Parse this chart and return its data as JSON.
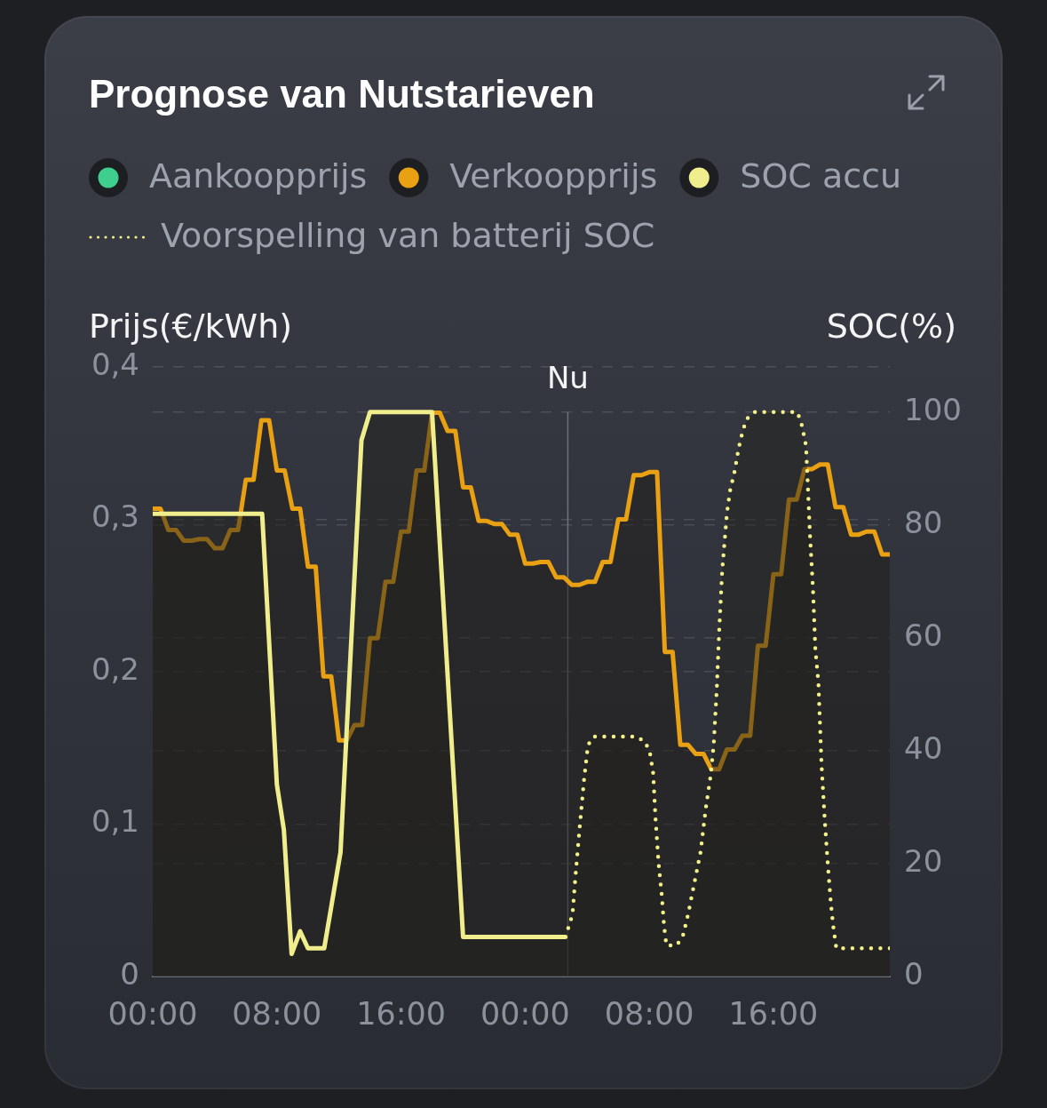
{
  "chart_data": {
    "type": "area",
    "title": "Prognose van Nutstarieven",
    "ylabel": "Prijs(€/kWh)",
    "y2label": "SOC(%)",
    "legend": "top",
    "grid": "y",
    "marker": "none",
    "xlim": [
      "--01-01T00:00",
      "--01-02T23:30"
    ],
    "xticks": [
      {
        "value": "--01-01T00:00",
        "label": "00:00"
      },
      {
        "value": "--01-01T08:00",
        "label": "08:00"
      },
      {
        "value": "--01-01T16:00",
        "label": "16:00"
      },
      {
        "value": "--01-02T00:00",
        "label": "00:00"
      },
      {
        "value": "--01-02T08:00",
        "label": "08:00"
      },
      {
        "value": "--01-02T16:00",
        "label": "16:00"
      }
    ],
    "ylim": [
      0,
      0.4
    ],
    "yticks": [
      0,
      {
        "value": 0.1,
        "label": "0,1"
      },
      {
        "value": 0.2,
        "label": "0,2"
      },
      {
        "value": 0.3,
        "label": "0,3"
      },
      {
        "value": 0.4,
        "label": "0,4"
      }
    ],
    "y2lim": [
      0,
      108
    ],
    "y2ticks": [
      0,
      20,
      40,
      60,
      80,
      100
    ],
    "x": [
      "--01-01T00:00",
      "--01-01T00:30",
      "--01-01T01:00",
      "--01-01T01:30",
      "--01-01T02:00",
      "--01-01T02:30",
      "--01-01T03:00",
      "--01-01T03:30",
      "--01-01T04:00",
      "--01-01T04:30",
      "--01-01T05:00",
      "--01-01T05:30",
      "--01-01T06:00",
      "--01-01T06:30",
      "--01-01T07:00",
      "--01-01T07:30",
      "--01-01T08:00",
      "--01-01T08:30",
      "--01-01T09:00",
      "--01-01T09:30",
      "--01-01T10:00",
      "--01-01T10:30",
      "--01-01T11:00",
      "--01-01T11:30",
      "--01-01T12:00",
      "--01-01T12:30",
      "--01-01T13:00",
      "--01-01T13:30",
      "--01-01T14:00",
      "--01-01T14:30",
      "--01-01T15:00",
      "--01-01T15:30",
      "--01-01T16:00",
      "--01-01T16:30",
      "--01-01T17:00",
      "--01-01T17:30",
      "--01-01T18:00",
      "--01-01T18:30",
      "--01-01T19:00",
      "--01-01T19:30",
      "--01-01T20:00",
      "--01-01T20:30",
      "--01-01T21:00",
      "--01-01T21:30",
      "--01-01T22:00",
      "--01-01T22:30",
      "--01-01T23:00",
      "--01-01T23:30",
      "--01-02T00:00",
      "--01-02T00:30",
      "--01-02T01:00",
      "--01-02T01:30",
      "--01-02T02:00",
      "--01-02T02:30",
      "--01-02T03:00",
      "--01-02T03:30",
      "--01-02T04:00",
      "--01-02T04:30",
      "--01-02T05:00",
      "--01-02T05:30",
      "--01-02T06:00",
      "--01-02T06:30",
      "--01-02T07:00",
      "--01-02T07:30",
      "--01-02T08:00",
      "--01-02T08:30",
      "--01-02T09:00",
      "--01-02T09:30",
      "--01-02T10:00",
      "--01-02T10:30",
      "--01-02T11:00",
      "--01-02T11:30",
      "--01-02T12:00",
      "--01-02T12:30",
      "--01-02T13:00",
      "--01-02T13:30",
      "--01-02T14:00",
      "--01-02T14:30",
      "--01-02T15:00",
      "--01-02T15:30",
      "--01-02T16:00",
      "--01-02T16:30",
      "--01-02T17:00",
      "--01-02T17:30",
      "--01-02T18:00",
      "--01-02T18:30",
      "--01-02T19:00",
      "--01-02T19:30",
      "--01-02T20:00",
      "--01-02T20:30",
      "--01-02T21:00",
      "--01-02T21:30",
      "--01-02T22:00",
      "--01-02T22:30",
      "--01-02T23:00",
      "--01-02T23:30"
    ],
    "series": [
      {
        "name": "Aankoopprijs",
        "color": "#3ecf8e",
        "values": [
          null,
          null,
          null,
          null,
          null,
          null,
          null,
          null,
          null,
          null,
          null,
          null,
          null,
          null,
          null,
          null,
          null,
          null,
          null,
          null,
          null,
          null,
          null,
          null,
          null,
          null,
          null,
          null,
          null,
          null,
          null,
          null,
          null,
          null,
          null,
          null,
          null,
          null,
          null,
          null,
          null,
          null,
          null,
          null,
          null,
          null,
          null,
          null,
          null,
          null,
          null,
          null,
          null,
          null,
          null,
          null,
          null,
          null,
          null,
          null,
          null,
          null,
          null,
          null,
          null,
          null,
          null,
          null,
          null,
          null,
          null,
          null,
          null,
          null,
          null,
          null,
          null,
          null,
          null,
          null,
          null,
          null,
          null,
          null,
          null,
          null,
          null,
          null,
          null,
          null,
          null,
          null,
          null,
          null,
          null,
          null
        ]
      },
      {
        "name": "Verkoopprijs",
        "color": "#e9a012",
        "values": [
          0.307,
          0.307,
          0.293,
          0.293,
          0.286,
          0.286,
          0.287,
          0.287,
          0.281,
          0.281,
          0.293,
          0.293,
          0.326,
          0.326,
          0.365,
          0.365,
          0.332,
          0.332,
          0.307,
          0.307,
          0.269,
          0.269,
          0.197,
          0.197,
          0.155,
          0.155,
          0.165,
          0.165,
          0.222,
          0.222,
          0.259,
          0.259,
          0.292,
          0.292,
          0.332,
          0.332,
          0.37,
          0.37,
          0.358,
          0.358,
          0.321,
          0.321,
          0.299,
          0.299,
          0.297,
          0.297,
          0.29,
          0.29,
          0.271,
          0.271,
          0.272,
          0.272,
          0.262,
          0.262,
          0.257,
          0.257,
          0.259,
          0.259,
          0.272,
          0.272,
          0.3,
          0.3,
          0.329,
          0.329,
          0.331,
          0.331,
          0.213,
          0.213,
          0.152,
          0.152,
          0.146,
          0.146,
          0.136,
          0.136,
          0.149,
          0.149,
          0.158,
          0.158,
          0.217,
          0.217,
          0.264,
          0.264,
          0.313,
          0.313,
          0.333,
          0.333,
          0.336,
          0.336,
          0.308,
          0.308,
          0.29,
          0.29,
          0.292,
          0.292,
          0.277,
          0.277
        ]
      },
      {
        "name": "SOC accu",
        "color": "#f0ee8c",
        "axis": "y2",
        "x": [
          "--01-01T00:00",
          "--01-01T07:03",
          "--01-01T08:00",
          "--01-01T08:27",
          "--01-01T08:57",
          "--01-01T09:30",
          "--01-01T10:00",
          "--01-01T11:03",
          "--01-01T12:06",
          "--01-01T13:27",
          "--01-01T14:00",
          "--01-01T18:00",
          "--01-01T20:00",
          "--01-02T02:36"
        ],
        "values": [
          82,
          82,
          34,
          26,
          4,
          8,
          5,
          5,
          22,
          95,
          100,
          100,
          7,
          7
        ]
      },
      {
        "name": "Voorspelling van batterij SOC",
        "color": "#f3f08a",
        "axis": "y2",
        "line_style": "dotted",
        "x": [
          "--01-02T02:36",
          "--01-02T03:03",
          "--01-02T03:15",
          "--01-02T03:30",
          "--01-02T03:48",
          "--01-02T04:03",
          "--01-02T04:24",
          "--01-02T07:12",
          "--01-02T07:45",
          "--01-02T08:03",
          "--01-02T08:15",
          "--01-02T08:24",
          "--01-02T08:36",
          "--01-02T08:48",
          "--01-02T08:57",
          "--01-02T09:06",
          "--01-02T09:45",
          "--01-02T10:09",
          "--01-02T10:30",
          "--01-02T10:54",
          "--01-02T11:18",
          "--01-02T11:39",
          "--01-02T11:57",
          "--01-02T12:09",
          "--01-02T12:21",
          "--01-02T12:30",
          "--01-02T12:42",
          "--01-02T13:00",
          "--01-02T13:12",
          "--01-02T13:30",
          "--01-02T13:45",
          "--01-02T14:03",
          "--01-02T14:21",
          "--01-02T14:48",
          "--01-02T17:33",
          "--01-02T17:51",
          "--01-02T18:06",
          "--01-02T18:12",
          "--01-02T18:21",
          "--01-02T18:33",
          "--01-02T18:42",
          "--01-02T18:54",
          "--01-02T19:06",
          "--01-02T19:18",
          "--01-02T19:30",
          "--01-02T19:42",
          "--01-02T19:51",
          "--01-02T20:03",
          "--01-02T23:30"
        ],
        "values": [
          7,
          11,
          18,
          26,
          35,
          41,
          42.5,
          42.5,
          41.5,
          39.5,
          36,
          28,
          20,
          14.5,
          9,
          5.5,
          5.5,
          7,
          11,
          16.5,
          22,
          30,
          35.5,
          41,
          51,
          61,
          72,
          82,
          86,
          89.5,
          93.5,
          97,
          99,
          100,
          100,
          97.5,
          94,
          88,
          78.5,
          68.5,
          58,
          52,
          37.5,
          28,
          20,
          13,
          9,
          5,
          5
        ]
      }
    ],
    "ref_lines": [
      {
        "axis": "x",
        "value": "--01-02T02:45",
        "label": "Nu",
        "color": "#6d717a"
      }
    ]
  }
}
